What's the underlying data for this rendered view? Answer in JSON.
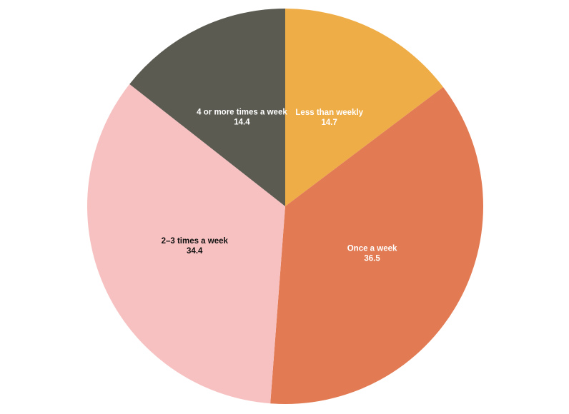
{
  "chart_data": {
    "type": "pie",
    "categories": [
      "Less than weekly",
      "Once a week",
      "2–3 times a week",
      "4 or more times a week"
    ],
    "values": [
      14.7,
      36.5,
      34.4,
      14.4
    ],
    "colors": [
      "#efad48",
      "#e27b53",
      "#f7c1c1",
      "#5b5b52"
    ],
    "label_colors": [
      "#ffffff",
      "#ffffff",
      "#111111",
      "#ffffff"
    ],
    "start_angle": "top",
    "direction": "clockwise"
  }
}
